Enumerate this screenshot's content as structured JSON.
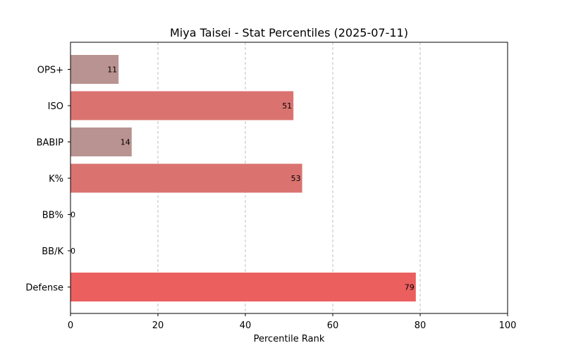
{
  "chart_data": {
    "type": "bar",
    "orientation": "horizontal",
    "title": "Miya Taisei - Stat Percentiles (2025-07-11)",
    "xlabel": "Percentile Rank",
    "ylabel": "",
    "xlim": [
      0,
      100
    ],
    "xticks": [
      0,
      20,
      40,
      60,
      80,
      100
    ],
    "grid": "x-dashed",
    "categories": [
      "OPS+",
      "ISO",
      "BABIP",
      "K%",
      "BB%",
      "BB/K",
      "Defense"
    ],
    "values": [
      11,
      51,
      14,
      53,
      0,
      0,
      79
    ],
    "colors": [
      "#b99391",
      "#da7370",
      "#b99391",
      "#da7370",
      "#a5a5a5",
      "#a5a5a5",
      "#ec5f5f"
    ]
  }
}
